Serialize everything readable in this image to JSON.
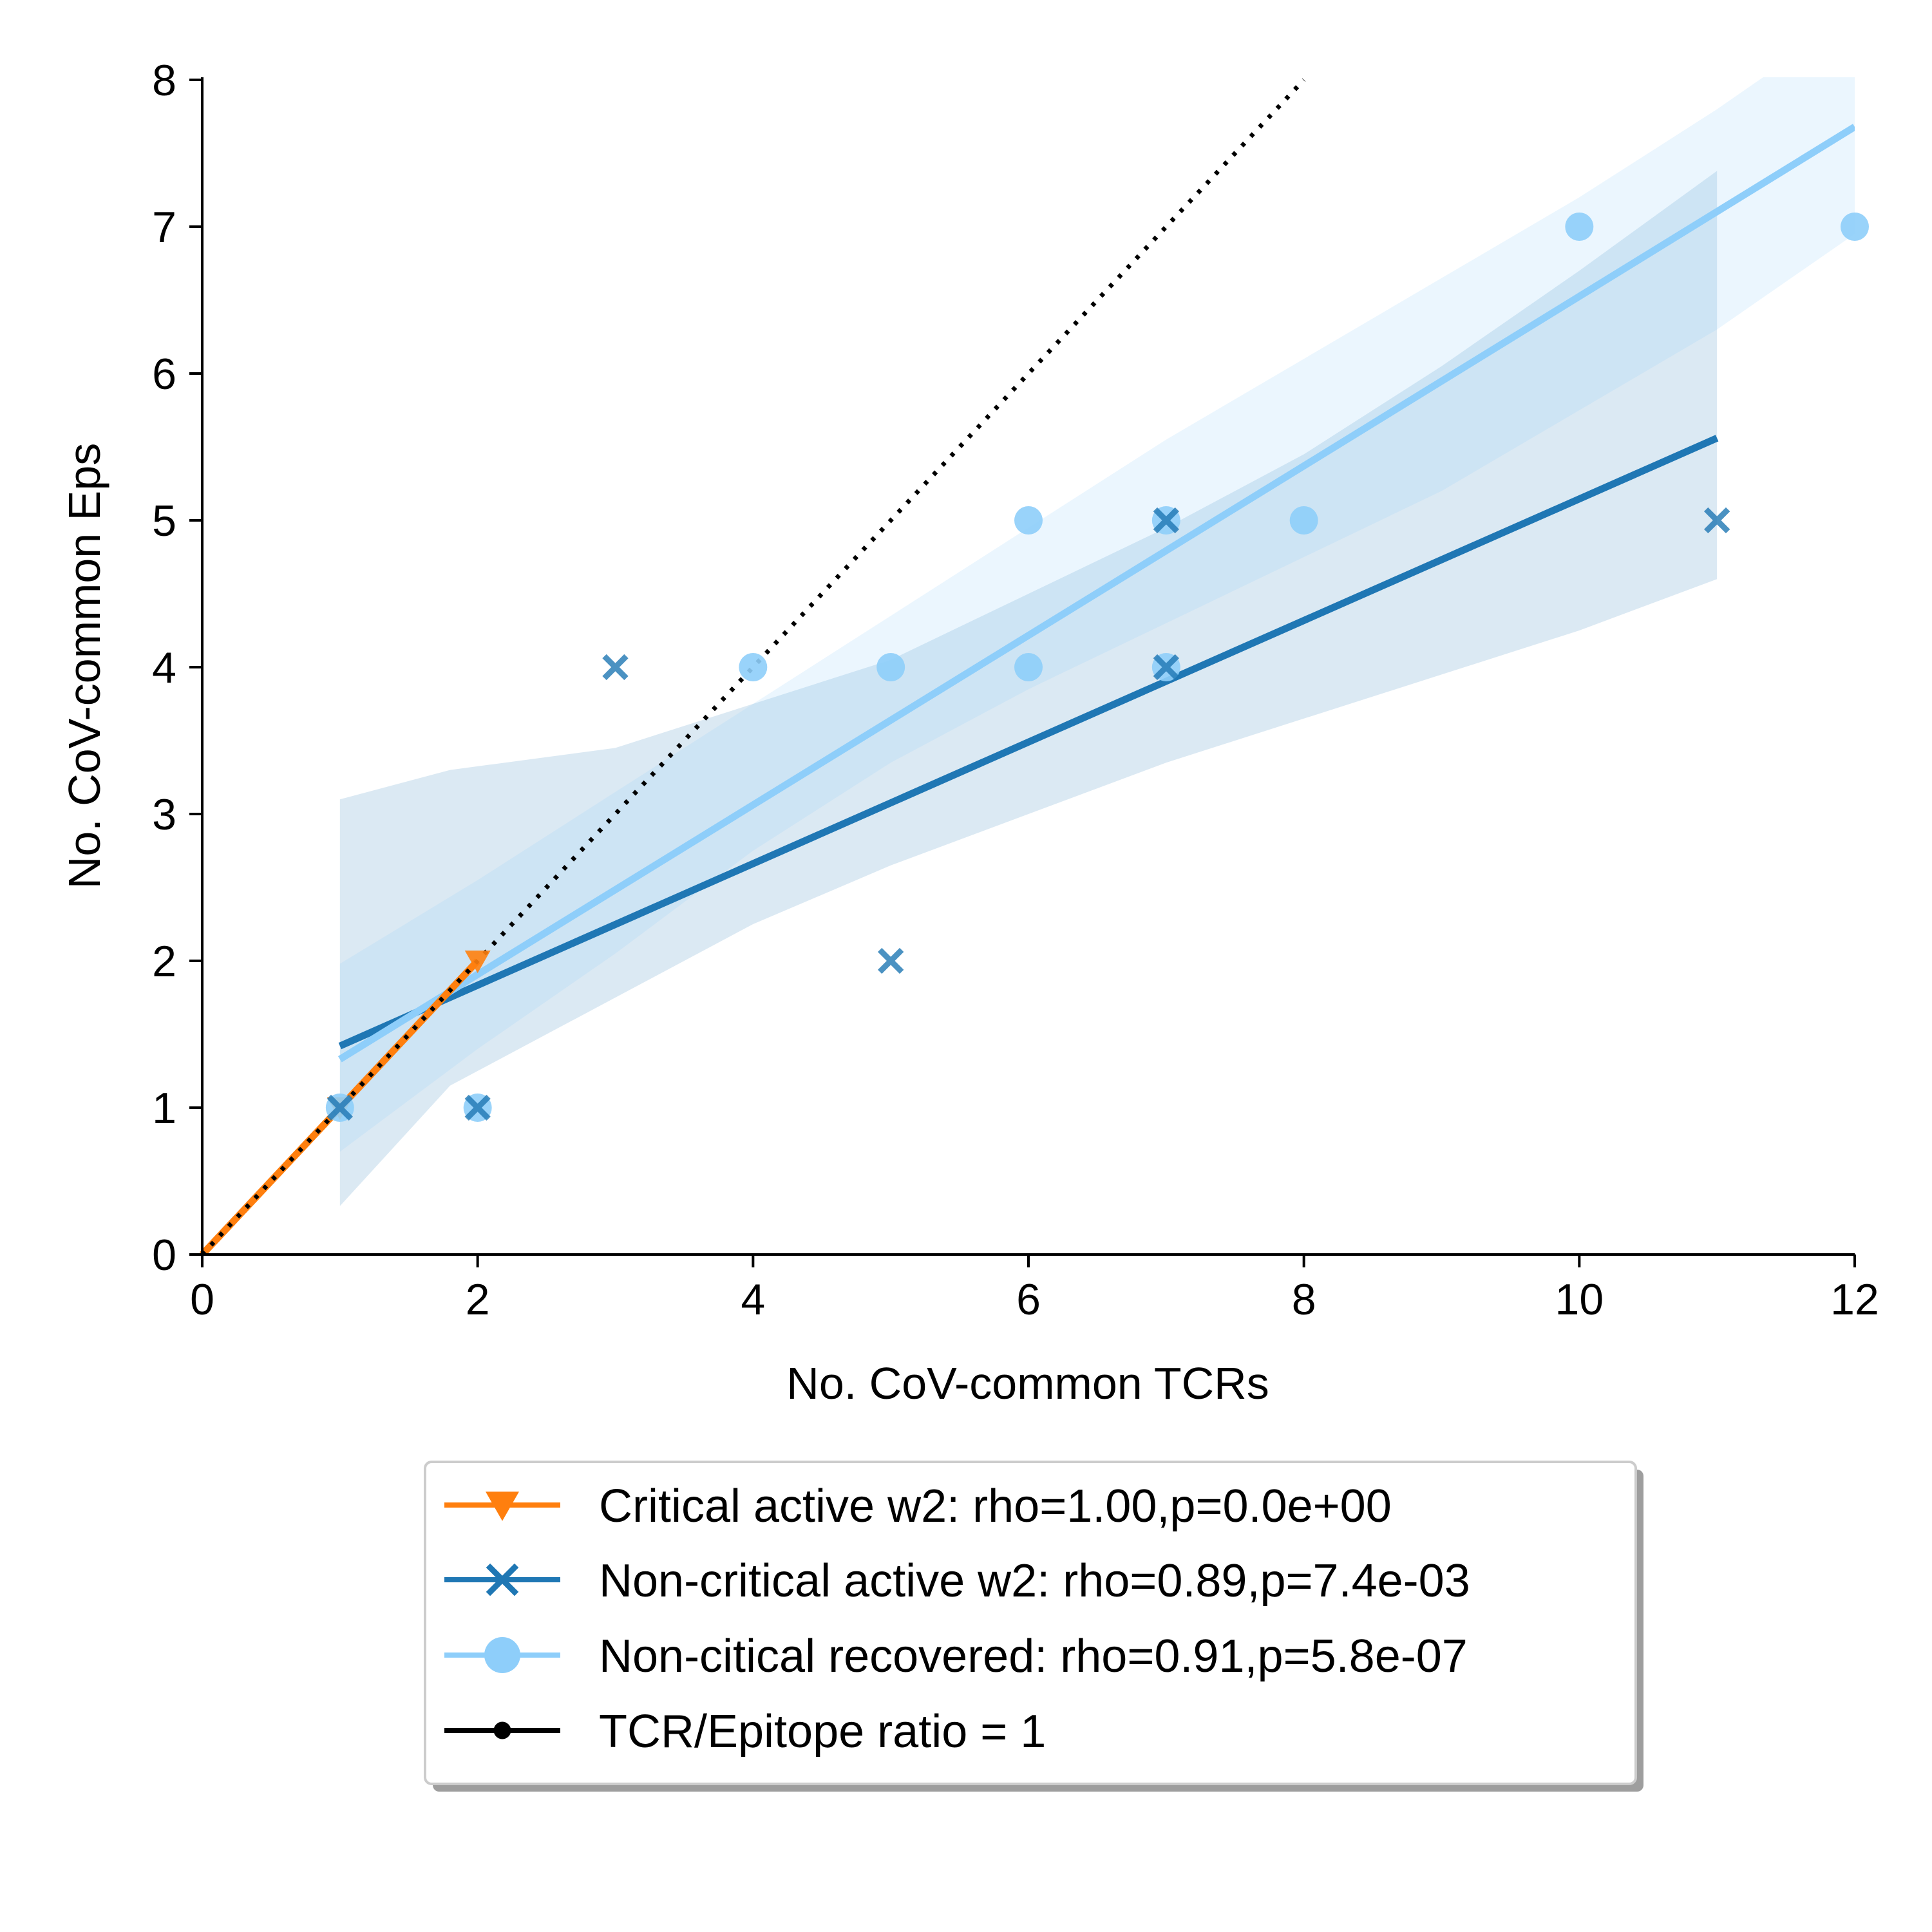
{
  "chart_data": {
    "type": "scatter",
    "xlabel": "No. CoV-common TCRs",
    "ylabel": "No. CoV-common Eps",
    "xlim": [
      0,
      12
    ],
    "ylim": [
      0,
      8
    ],
    "xticks": [
      0,
      2,
      4,
      6,
      8,
      10,
      12
    ],
    "yticks": [
      0,
      1,
      2,
      3,
      4,
      5,
      6,
      7,
      8
    ],
    "grid": false,
    "legend_position": "below plot, centered",
    "series": [
      {
        "name": "Critical active w2: rho=1.00,p=0.0e+00",
        "color": "#ff7f0e",
        "marker": "triangle-down",
        "points": [
          {
            "x": 1,
            "y": 1
          },
          {
            "x": 2,
            "y": 2
          }
        ],
        "fit": {
          "x": [
            0,
            2
          ],
          "y": [
            0,
            2
          ]
        }
      },
      {
        "name": "Non-critical active w2: rho=0.89,p=7.4e-03",
        "color": "#1f77b4",
        "marker": "x",
        "points": [
          {
            "x": 1,
            "y": 1
          },
          {
            "x": 2,
            "y": 1
          },
          {
            "x": 3,
            "y": 4
          },
          {
            "x": 5,
            "y": 2
          },
          {
            "x": 7,
            "y": 4
          },
          {
            "x": 7,
            "y": 5
          },
          {
            "x": 11,
            "y": 5
          }
        ],
        "fit": {
          "x": [
            1,
            11
          ],
          "y": [
            1.42,
            5.56
          ]
        },
        "ci": {
          "x": [
            1,
            1.8,
            3,
            4,
            5,
            6,
            7,
            8,
            9,
            10,
            11
          ],
          "upper": [
            3.1,
            3.3,
            3.45,
            3.75,
            4.05,
            4.5,
            4.95,
            5.45,
            6.05,
            6.7,
            7.38
          ],
          "lower": [
            0.33,
            1.15,
            1.75,
            2.25,
            2.65,
            3.0,
            3.35,
            3.65,
            3.95,
            4.25,
            4.6
          ]
        }
      },
      {
        "name": "Non-citical recovered: rho=0.91,p=5.8e-07",
        "color": "#8ecefa",
        "marker": "circle",
        "points": [
          {
            "x": 1,
            "y": 1
          },
          {
            "x": 2,
            "y": 1
          },
          {
            "x": 4,
            "y": 4
          },
          {
            "x": 5,
            "y": 4
          },
          {
            "x": 6,
            "y": 4
          },
          {
            "x": 6,
            "y": 5
          },
          {
            "x": 7,
            "y": 4
          },
          {
            "x": 7,
            "y": 5
          },
          {
            "x": 8,
            "y": 5
          },
          {
            "x": 10,
            "y": 7
          },
          {
            "x": 12,
            "y": 7
          }
        ],
        "fit": {
          "x": [
            1,
            12
          ],
          "y": [
            1.33,
            7.68
          ]
        },
        "ci": {
          "x": [
            1,
            2,
            3,
            4,
            5,
            6,
            7,
            8,
            9,
            10,
            11,
            12
          ],
          "upper": [
            1.98,
            2.55,
            3.15,
            3.75,
            4.35,
            4.95,
            5.55,
            6.1,
            6.65,
            7.2,
            7.8,
            8.45
          ],
          "lower": [
            0.7,
            1.4,
            2.05,
            2.75,
            3.35,
            3.85,
            4.3,
            4.75,
            5.2,
            5.75,
            6.3,
            6.95
          ]
        }
      },
      {
        "name": "TCR/Epitope ratio = 1",
        "color": "#000000",
        "marker": "point",
        "line_style": "dotted",
        "fit": {
          "x": [
            0,
            8
          ],
          "y": [
            0,
            8
          ]
        }
      }
    ]
  }
}
